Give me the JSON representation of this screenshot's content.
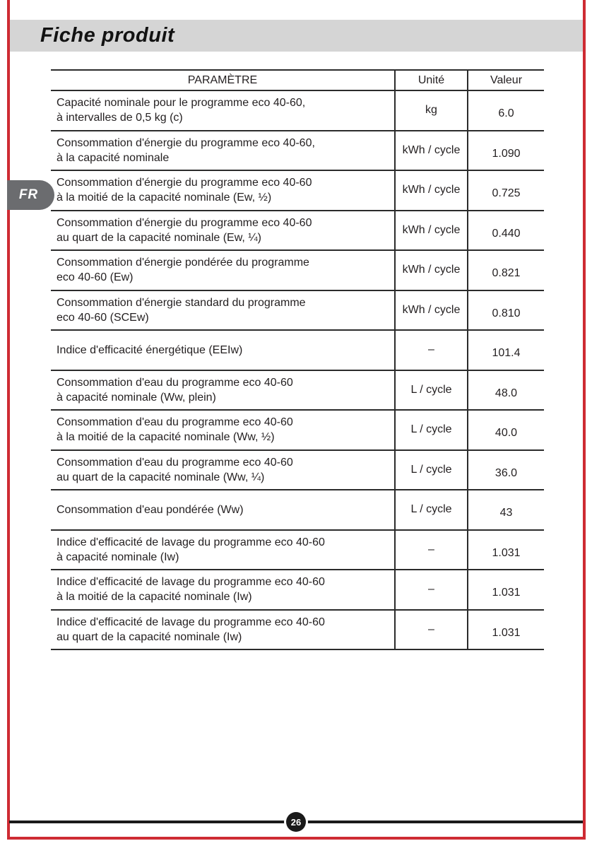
{
  "page": {
    "title": "Fiche produit",
    "language_tab": "FR",
    "page_number": "26"
  },
  "colors": {
    "accent_red": "#ce2b33",
    "band_gray": "#d5d5d5",
    "tab_gray": "#6b6c6f",
    "table_line": "#2b2b2b"
  },
  "table": {
    "headers": {
      "parameter": "PARAMÈTRE",
      "unit": "Unité",
      "value": "Valeur"
    },
    "rows": [
      {
        "parameter_line1": "Capacité nominale pour le programme eco 40-60,",
        "parameter_line2": "à intervalles de 0,5 kg (c)",
        "unit": "kg",
        "value": "6.0"
      },
      {
        "parameter_line1": "Consommation d'énergie du programme eco 40-60,",
        "parameter_line2": "à la capacité nominale",
        "unit": "kWh / cycle",
        "value": "1.090"
      },
      {
        "parameter_line1": "Consommation d'énergie du programme eco 40-60",
        "parameter_line2": "à la moitié de la capacité nominale (Ew, ½)",
        "unit": "kWh / cycle",
        "value": "0.725"
      },
      {
        "parameter_line1": "Consommation d'énergie du programme eco 40-60",
        "parameter_line2": "au quart de la capacité nominale (Ew, ¼)",
        "unit": "kWh / cycle",
        "value": "0.440"
      },
      {
        "parameter_line1": "Consommation d'énergie pondérée du programme",
        "parameter_line2": "eco 40-60 (Ew)",
        "unit": "kWh / cycle",
        "value": "0.821"
      },
      {
        "parameter_line1": "Consommation d'énergie standard du programme",
        "parameter_line2": "eco 40-60 (SCEw)",
        "unit": "kWh / cycle",
        "value": "0.810"
      },
      {
        "parameter_line1": "Indice d'efficacité énergétique (EEIw)",
        "parameter_line2": "",
        "unit": "–",
        "value": "101.4"
      },
      {
        "parameter_line1": "Consommation d'eau du programme eco 40-60",
        "parameter_line2": "à capacité nominale (Ww, plein)",
        "unit": "L / cycle",
        "value": "48.0"
      },
      {
        "parameter_line1": "Consommation d'eau du programme eco 40-60",
        "parameter_line2": "à la moitié de la capacité nominale (Ww, ½)",
        "unit": "L / cycle",
        "value": "40.0"
      },
      {
        "parameter_line1": "Consommation d'eau du programme eco 40-60",
        "parameter_line2": "au quart de la capacité nominale (Ww, ¼)",
        "unit": "L / cycle",
        "value": "36.0"
      },
      {
        "parameter_line1": "Consommation d'eau pondérée (Ww)",
        "parameter_line2": "",
        "unit": "L / cycle",
        "value": "43"
      },
      {
        "parameter_line1": "Indice d'efficacité de lavage du programme eco 40-60",
        "parameter_line2": "à capacité nominale (Iw)",
        "unit": "–",
        "value": "1.031"
      },
      {
        "parameter_line1": "Indice d'efficacité de lavage du programme eco 40-60",
        "parameter_line2": "à la moitié de la capacité nominale (Iw)",
        "unit": "–",
        "value": "1.031"
      },
      {
        "parameter_line1": "Indice d'efficacité de lavage du programme eco 40-60",
        "parameter_line2": "au quart de la capacité nominale (Iw)",
        "unit": "–",
        "value": "1.031"
      }
    ]
  }
}
